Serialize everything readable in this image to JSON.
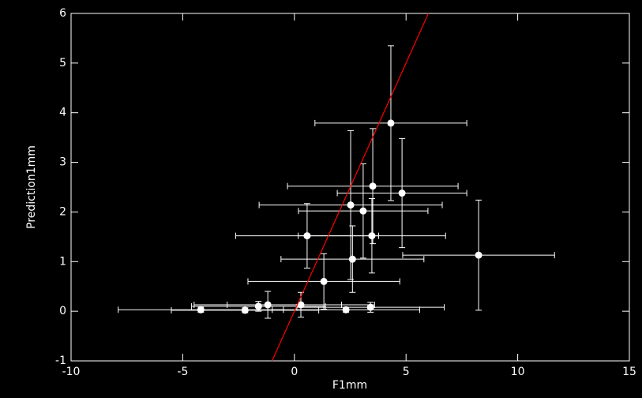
{
  "chart_data": {
    "type": "scatter",
    "x_label": "F1mm",
    "y_label": "Prediction1mm",
    "xlim": [
      -10,
      15
    ],
    "ylim": [
      -1,
      6
    ],
    "xticks": [
      -10,
      -5,
      0,
      5,
      10,
      15
    ],
    "yticks": [
      -1,
      0,
      1,
      2,
      3,
      4,
      5,
      6
    ],
    "background": "#000000",
    "axis_color": "#ffffff",
    "points": {
      "color": "#ffffff",
      "x": [
        4.32,
        3.51,
        4.82,
        2.52,
        3.08,
        0.57,
        3.47,
        2.6,
        8.25,
        1.32,
        -4.19,
        -2.21,
        -1.61,
        -1.19,
        0.29,
        2.31,
        3.41
      ],
      "y": [
        3.79,
        2.52,
        2.38,
        2.14,
        2.02,
        1.52,
        1.52,
        1.05,
        1.13,
        0.6,
        0.03,
        0.02,
        0.1,
        0.13,
        0.13,
        0.03,
        0.08
      ],
      "xerr": [
        3.4,
        3.82,
        2.9,
        4.1,
        2.9,
        3.2,
        3.3,
        3.2,
        3.4,
        3.4,
        3.7,
        3.3,
        3.0,
        3.3,
        3.3,
        3.3,
        3.3
      ],
      "yerr": [
        1.56,
        1.16,
        1.1,
        1.5,
        0.95,
        0.65,
        0.75,
        0.67,
        1.11,
        0.56,
        0.05,
        0.05,
        0.1,
        0.27,
        0.25,
        0.05,
        0.1
      ]
    },
    "fit_line": {
      "color": "#ff0000",
      "x": [
        -1,
        6
      ],
      "y": [
        -1,
        6
      ]
    }
  }
}
